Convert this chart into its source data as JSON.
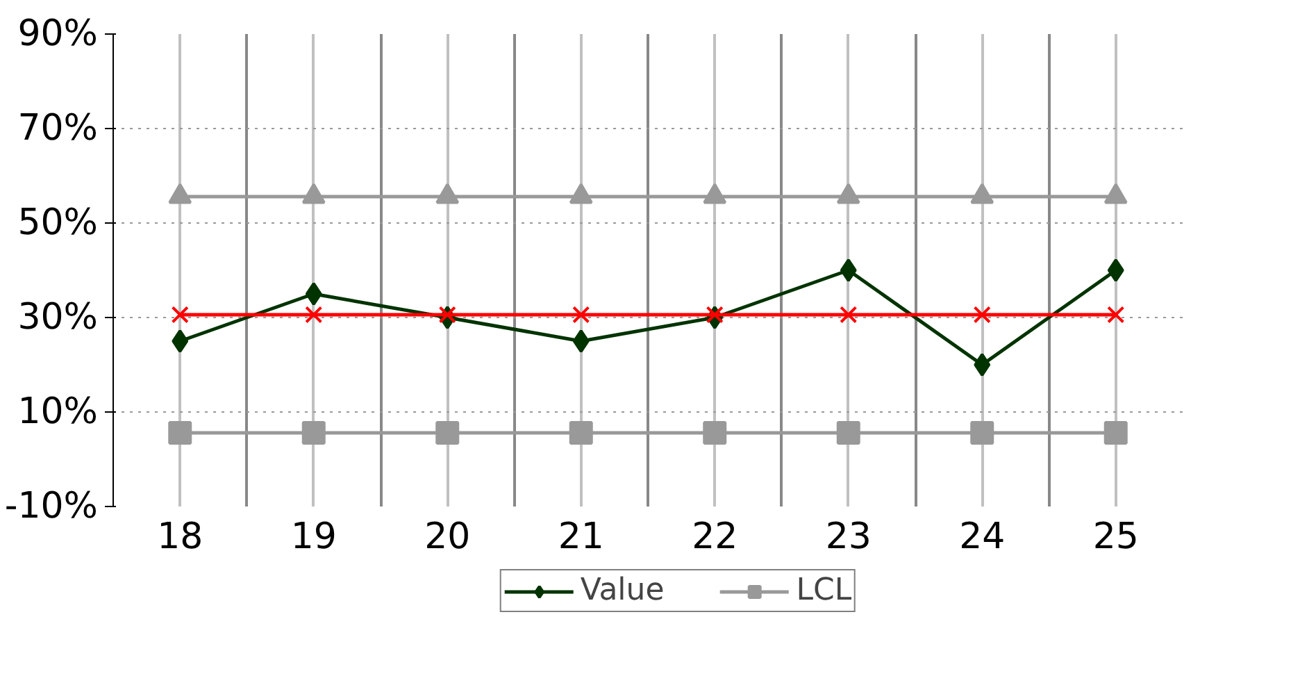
{
  "chart_data": {
    "type": "line",
    "categories": [
      "18",
      "19",
      "20",
      "21",
      "22",
      "23",
      "24",
      "25"
    ],
    "series": [
      {
        "name": "Value",
        "color": "#003300",
        "marker": "diamond",
        "values": [
          25,
          35,
          30,
          25,
          30,
          40,
          20,
          40
        ]
      },
      {
        "name": "LCL",
        "color": "#999999",
        "marker": "square",
        "values": [
          5.6,
          5.6,
          5.6,
          5.6,
          5.6,
          5.6,
          5.6,
          5.6
        ]
      },
      {
        "color": "#999999",
        "marker": "triangle",
        "values": [
          55.6,
          55.6,
          55.6,
          55.6,
          55.6,
          55.6,
          55.6,
          55.6
        ]
      },
      {
        "color": "#ff0000",
        "marker": "cross",
        "values": [
          30.6,
          30.6,
          30.6,
          30.6,
          30.6,
          30.6,
          30.6,
          30.6
        ]
      }
    ],
    "ylim": [
      -10,
      90
    ],
    "yticks": [
      {
        "value": -10,
        "label": "-10%"
      },
      {
        "value": 10,
        "label": "10%"
      },
      {
        "value": 30,
        "label": "30%"
      },
      {
        "value": 50,
        "label": "50%"
      },
      {
        "value": 70,
        "label": "70%"
      },
      {
        "value": 90,
        "label": "90%"
      }
    ],
    "grid": true,
    "legend": "bottom",
    "line_style": "solid"
  }
}
